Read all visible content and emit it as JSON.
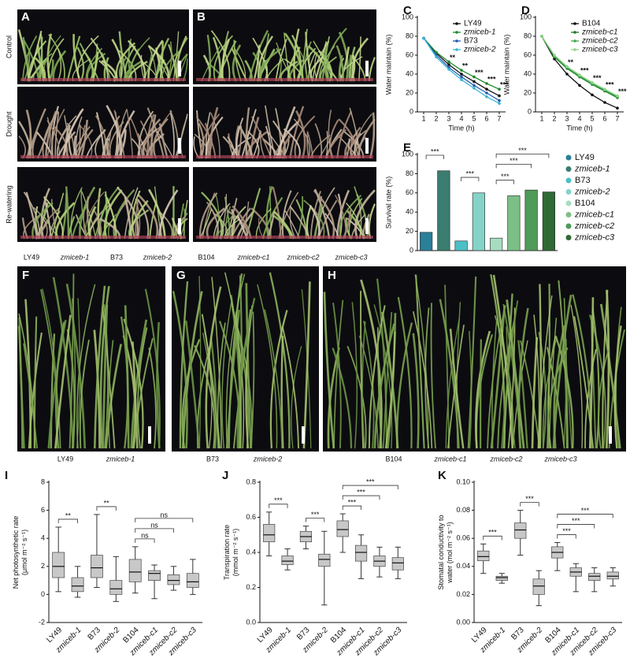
{
  "photos": [
    {
      "label": "A",
      "rows": [
        "Control",
        "Drought",
        "Re-watering"
      ],
      "captions": [
        "LY49",
        "zmiceb-1",
        "B73",
        "zmiceb-2"
      ]
    },
    {
      "label": "B",
      "captions": [
        "B104",
        "zmiceb-c1",
        "zmiceb-c2",
        "zmiceb-c3"
      ]
    },
    {
      "label": "F",
      "captions": [
        "LY49",
        "zmiceb-1"
      ]
    },
    {
      "label": "G",
      "captions": [
        "B73",
        "zmiceb-2"
      ]
    },
    {
      "label": "H",
      "captions": [
        "B104",
        "zmiceb-c1",
        "zmiceb-c2",
        "zmiceb-c3"
      ]
    }
  ],
  "chart_data": [
    {
      "type": "line",
      "label": "C",
      "xlabel": "Time (h)",
      "ylabel": "Water maintain (%)",
      "x": [
        1,
        2,
        3,
        4,
        5,
        6,
        7
      ],
      "xlim": [
        0.5,
        7.5
      ],
      "xticks": [
        1,
        2,
        3,
        4,
        5,
        6,
        7
      ],
      "ylim": [
        0,
        100
      ],
      "yticks": [
        0,
        20,
        40,
        60,
        80,
        100
      ],
      "series": [
        {
          "name": "LY49",
          "color": "#111111",
          "values": [
            78,
            62,
            50,
            40,
            32,
            24,
            17
          ]
        },
        {
          "name": "zmiceb-1",
          "color": "#1e8a2e",
          "values": [
            78,
            63,
            53,
            44,
            37,
            30,
            24
          ]
        },
        {
          "name": "B73",
          "color": "#2a5db0",
          "values": [
            78,
            60,
            47,
            37,
            28,
            20,
            12
          ]
        },
        {
          "name": "zmiceb-2",
          "color": "#39b6d6",
          "values": [
            78,
            58,
            45,
            34,
            25,
            16,
            9
          ]
        }
      ],
      "significance": [
        null,
        null,
        "**",
        "**",
        "***",
        "***",
        "***"
      ]
    },
    {
      "type": "line",
      "label": "D",
      "xlabel": "Time (h)",
      "ylabel": "Water maintain (%)",
      "x": [
        1,
        2,
        3,
        4,
        5,
        6,
        7
      ],
      "xlim": [
        0.5,
        7.5
      ],
      "xticks": [
        1,
        2,
        3,
        4,
        5,
        6,
        7
      ],
      "ylim": [
        0,
        100
      ],
      "yticks": [
        0,
        20,
        40,
        60,
        80,
        100
      ],
      "series": [
        {
          "name": "B104",
          "color": "#111111",
          "values": [
            80,
            56,
            40,
            28,
            18,
            10,
            4
          ]
        },
        {
          "name": "zmiceb-c1",
          "color": "#1e7a2a",
          "values": [
            80,
            58,
            46,
            37,
            29,
            22,
            15
          ]
        },
        {
          "name": "zmiceb-c2",
          "color": "#3fae4a",
          "values": [
            80,
            59,
            47,
            38,
            30,
            23,
            16
          ]
        },
        {
          "name": "zmiceb-c3",
          "color": "#8fd48a",
          "values": [
            80,
            60,
            48,
            39,
            31,
            24,
            17
          ]
        }
      ],
      "significance": [
        null,
        null,
        "**",
        "***",
        "***",
        "***",
        "***"
      ]
    },
    {
      "type": "bar",
      "label": "E",
      "ylabel": "Survival rate (%)",
      "categories": [
        "LY49",
        "zmiceb-1",
        "B73",
        "zmiceb-2",
        "B104",
        "zmiceb-c1",
        "zmiceb-c2",
        "zmiceb-c3"
      ],
      "values": [
        19,
        83,
        10,
        60,
        13,
        57,
        63,
        61
      ],
      "colors": [
        "#2b7f99",
        "#3a7c70",
        "#4bbfc6",
        "#84d3c6",
        "#a6dcc0",
        "#7cbf86",
        "#4f9a58",
        "#2f6a35"
      ],
      "ylim": [
        0,
        100
      ],
      "yticks": [
        0,
        20,
        40,
        60,
        80,
        100
      ],
      "significance": [
        "***",
        "***",
        "***",
        "***",
        "***"
      ]
    },
    {
      "type": "box",
      "label": "I",
      "ylabel": [
        "Net photosynthetic rate",
        "(μmol m⁻² s⁻¹)"
      ],
      "categories": [
        "LY49",
        "zmiceb-1",
        "B73",
        "zmiceb-2",
        "B104",
        "zmiceb-c1",
        "zmiceb-c2",
        "zmiceb-c3"
      ],
      "min": [
        0.2,
        -0.2,
        0.5,
        -0.5,
        0.1,
        -0.3,
        0.3,
        0
      ],
      "q1": [
        1.2,
        0.2,
        1.2,
        0,
        0.9,
        1.0,
        0.7,
        0.5
      ],
      "median": [
        2.0,
        0.6,
        1.9,
        0.4,
        1.6,
        1.5,
        1.0,
        0.9
      ],
      "q3": [
        3.0,
        1.2,
        2.8,
        1.0,
        2.5,
        1.7,
        1.4,
        1.5
      ],
      "max": [
        4.8,
        2.0,
        5.7,
        2.7,
        3.4,
        2.1,
        2.0,
        2.5
      ],
      "color": "#c8c8c8",
      "ylim": [
        -2,
        8
      ],
      "yticks": [
        -2,
        0,
        2,
        4,
        6,
        8
      ],
      "significance": [
        "**",
        "**",
        "ns",
        "ns",
        "ns"
      ]
    },
    {
      "type": "box",
      "label": "J",
      "ylabel": [
        "Transpiration rate",
        "(mmol m⁻² s⁻¹)"
      ],
      "categories": [
        "LY49",
        "zmiceb-1",
        "B73",
        "zmiceb-2",
        "B104",
        "zmiceb-c1",
        "zmiceb-c2",
        "zmiceb-c3"
      ],
      "min": [
        0.38,
        0.3,
        0.42,
        0.1,
        0.4,
        0.25,
        0.26,
        0.25
      ],
      "q1": [
        0.46,
        0.33,
        0.46,
        0.32,
        0.49,
        0.35,
        0.32,
        0.3
      ],
      "median": [
        0.5,
        0.35,
        0.49,
        0.36,
        0.53,
        0.4,
        0.35,
        0.34
      ],
      "q3": [
        0.56,
        0.38,
        0.52,
        0.39,
        0.58,
        0.44,
        0.38,
        0.37
      ],
      "max": [
        0.63,
        0.42,
        0.55,
        0.52,
        0.62,
        0.5,
        0.43,
        0.43
      ],
      "color": "#c8c8c8",
      "ylim": [
        0,
        0.8
      ],
      "yticks": [
        {
          "value": 0,
          "label": "0.0"
        },
        0.2,
        0.4,
        0.6,
        0.8
      ],
      "significance": [
        "***",
        "***",
        "***",
        "***",
        "***"
      ]
    },
    {
      "type": "box",
      "label": "K",
      "ylabel": [
        "Stomatal conductivity to",
        "water (mol m⁻² s⁻¹)"
      ],
      "categories": [
        "LY49",
        "zmiceb-1",
        "B73",
        "zmiceb-2",
        "B104",
        "zmiceb-c1",
        "zmiceb-c2",
        "zmiceb-c3"
      ],
      "min": [
        0.035,
        0.028,
        0.048,
        0.012,
        0.037,
        0.022,
        0.022,
        0.026
      ],
      "q1": [
        0.044,
        0.03,
        0.06,
        0.02,
        0.046,
        0.033,
        0.03,
        0.031
      ],
      "median": [
        0.047,
        0.032,
        0.066,
        0.026,
        0.05,
        0.036,
        0.033,
        0.033
      ],
      "q3": [
        0.051,
        0.033,
        0.071,
        0.031,
        0.054,
        0.039,
        0.035,
        0.036
      ],
      "max": [
        0.056,
        0.035,
        0.08,
        0.037,
        0.057,
        0.042,
        0.039,
        0.039
      ],
      "color": "#c8c8c8",
      "ylim": [
        0,
        0.1
      ],
      "yticks": [
        {
          "value": 0,
          "label": "0.00"
        },
        0.02,
        0.04,
        0.06,
        0.08,
        {
          "value": 0.1,
          "label": "0.10"
        }
      ],
      "significance": [
        "***",
        "***",
        "***",
        "***",
        "***"
      ]
    }
  ]
}
